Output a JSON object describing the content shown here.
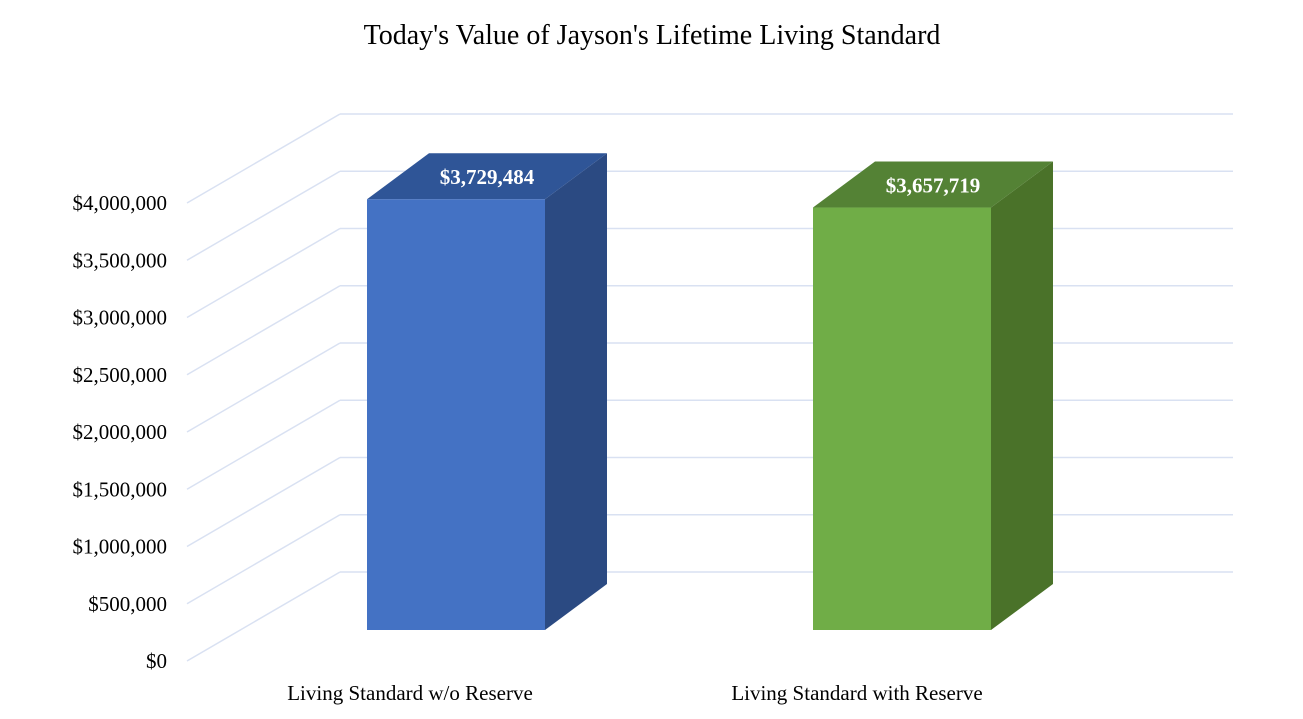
{
  "chart_data": {
    "type": "bar",
    "title": "Today's Value of Jayson's Lifetime Living Standard",
    "categories": [
      "Living Standard w/o Reserve",
      "Living Standard with Reserve"
    ],
    "values": [
      3729484,
      3657719
    ],
    "value_labels": [
      "$3,729,484",
      "$3,657,719"
    ],
    "ylim": [
      0,
      4000000
    ],
    "yticks": [
      0,
      500000,
      1000000,
      1500000,
      2000000,
      2500000,
      3000000,
      3500000,
      4000000
    ],
    "ytick_labels": [
      "$0",
      "$500,000",
      "$1,000,000",
      "$1,500,000",
      "$2,000,000",
      "$2,500,000",
      "$3,000,000",
      "$3,500,000",
      "$4,000,000"
    ],
    "grid": true,
    "legend": "none",
    "style": "3d-column",
    "bar_colors": [
      {
        "front": "#4472C4",
        "top": "#2F5597",
        "side": "#2B4A82"
      },
      {
        "front": "#70AD47",
        "top": "#548235",
        "side": "#4A7229"
      }
    ],
    "grid_color": "#D9E1F2"
  }
}
